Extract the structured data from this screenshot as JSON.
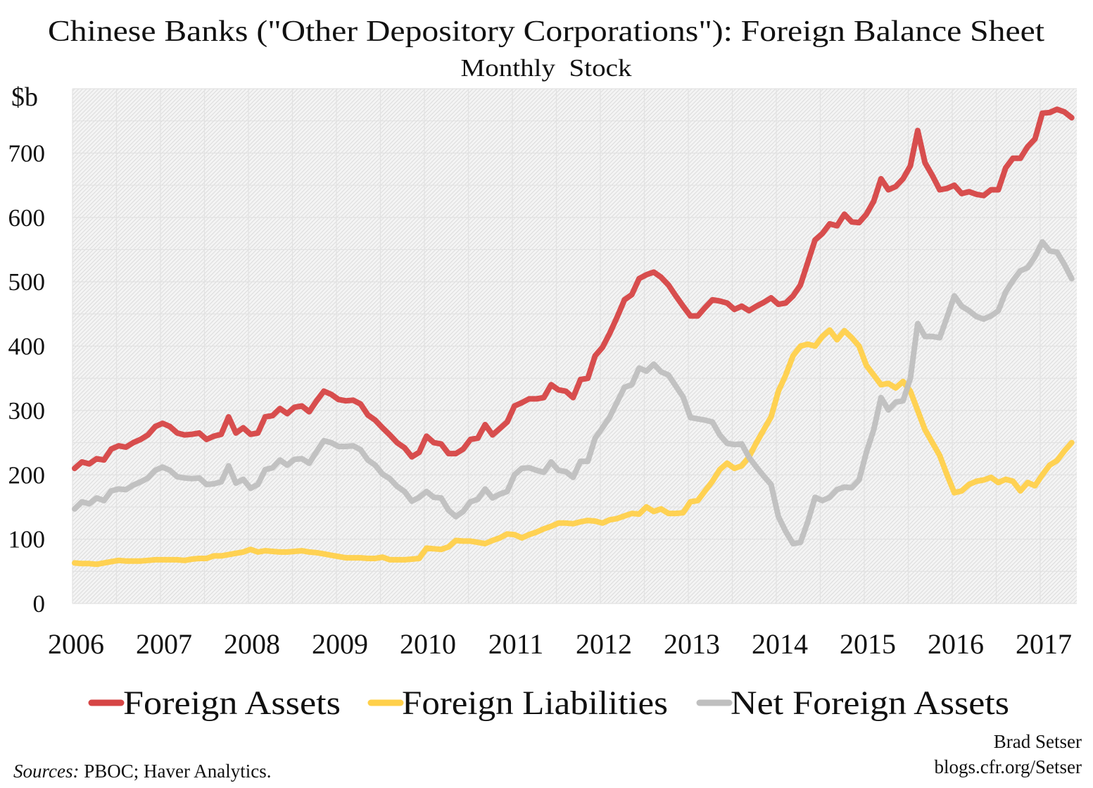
{
  "chart_data": {
    "type": "line",
    "title": "Chinese Banks (\"Other Depository Corporations\"): Foreign Balance Sheet",
    "subtitle": "Monthly  Stock",
    "ylabel": "$b",
    "ylim": [
      0,
      800
    ],
    "yticks": [
      "0",
      "100",
      "200",
      "300",
      "400",
      "500",
      "600",
      "700"
    ],
    "xticks": [
      "2006",
      "2007",
      "2008",
      "2009",
      "2010",
      "2011",
      "2012",
      "2013",
      "2014",
      "2015",
      "2016",
      "2017"
    ],
    "x_start": "2006-01",
    "frequency": "monthly",
    "grid": true,
    "legend_position": "bottom",
    "series": [
      {
        "name": "Foreign Assets",
        "color": "#d64545",
        "values": [
          210,
          220,
          217,
          225,
          223,
          240,
          245,
          243,
          250,
          255,
          262,
          275,
          280,
          275,
          265,
          262,
          263,
          265,
          255,
          260,
          263,
          290,
          265,
          273,
          263,
          265,
          290,
          292,
          303,
          295,
          305,
          307,
          298,
          315,
          330,
          325,
          317,
          315,
          316,
          310,
          293,
          285,
          273,
          262,
          250,
          242,
          228,
          235,
          260,
          250,
          248,
          233,
          233,
          240,
          255,
          257,
          278,
          262,
          272,
          282,
          307,
          312,
          318,
          318,
          320,
          340,
          332,
          330,
          320,
          348,
          350,
          385,
          398,
          420,
          445,
          472,
          480,
          505,
          511,
          515,
          507,
          495,
          478,
          462,
          447,
          447,
          460,
          472,
          470,
          467,
          457,
          462,
          455,
          462,
          468,
          475,
          465,
          467,
          478,
          495,
          530,
          565,
          575,
          590,
          587,
          605,
          593,
          592,
          605,
          625,
          660,
          643,
          648,
          660,
          680,
          735,
          685,
          665,
          643,
          645,
          650,
          637,
          640,
          636,
          634,
          643,
          643,
          677,
          692,
          692,
          710,
          722,
          762,
          763,
          768,
          764,
          755
        ]
      },
      {
        "name": "Foreign Liabilities",
        "color": "#ffd04a",
        "values": [
          63,
          62,
          62,
          61,
          63,
          65,
          67,
          66,
          66,
          66,
          67,
          68,
          68,
          68,
          68,
          67,
          69,
          70,
          70,
          74,
          74,
          76,
          78,
          80,
          84,
          80,
          82,
          81,
          80,
          80,
          81,
          82,
          80,
          79,
          77,
          75,
          73,
          71,
          71,
          71,
          70,
          70,
          72,
          68,
          68,
          68,
          69,
          70,
          86,
          85,
          84,
          88,
          98,
          97,
          97,
          95,
          93,
          98,
          102,
          108,
          107,
          102,
          107,
          111,
          116,
          120,
          125,
          125,
          124,
          127,
          129,
          128,
          125,
          130,
          132,
          136,
          140,
          139,
          150,
          143,
          147,
          140,
          140,
          141,
          158,
          160,
          175,
          190,
          208,
          218,
          210,
          214,
          228,
          250,
          270,
          290,
          330,
          355,
          385,
          400,
          403,
          400,
          415,
          425,
          410,
          424,
          413,
          400,
          370,
          355,
          340,
          342,
          335,
          345,
          330,
          300,
          270,
          250,
          230,
          200,
          172,
          175,
          185,
          190,
          192,
          196,
          188,
          193,
          190,
          175,
          188,
          183,
          200,
          215,
          222,
          237,
          250
        ]
      },
      {
        "name": "Net Foreign Assets",
        "color": "#bfbfbf",
        "values": [
          147,
          158,
          155,
          164,
          160,
          175,
          178,
          177,
          184,
          189,
          195,
          207,
          212,
          207,
          197,
          195,
          194,
          195,
          185,
          186,
          189,
          214,
          187,
          193,
          179,
          185,
          208,
          211,
          223,
          215,
          224,
          225,
          218,
          236,
          253,
          250,
          244,
          244,
          245,
          239,
          223,
          215,
          201,
          194,
          182,
          174,
          159,
          165,
          174,
          165,
          164,
          145,
          135,
          143,
          158,
          162,
          178,
          164,
          170,
          174,
          200,
          210,
          211,
          207,
          204,
          220,
          207,
          205,
          196,
          221,
          221,
          257,
          273,
          290,
          313,
          336,
          340,
          366,
          361,
          372,
          360,
          355,
          338,
          321,
          289,
          287,
          285,
          282,
          262,
          249,
          247,
          248,
          227,
          212,
          198,
          185,
          135,
          112,
          93,
          95,
          127,
          165,
          160,
          165,
          177,
          181,
          180,
          192,
          235,
          270,
          320,
          301,
          313,
          315,
          350,
          435,
          415,
          415,
          413,
          445,
          478,
          462,
          455,
          446,
          442,
          447,
          455,
          484,
          502,
          517,
          522,
          539,
          562,
          548,
          546,
          527,
          505
        ]
      }
    ]
  },
  "footer": {
    "author": "Brad Setser",
    "url": "blogs.cfr.org/Setser",
    "sources_label": "Sources:",
    "sources_text": " PBOC; Haver Analytics."
  }
}
